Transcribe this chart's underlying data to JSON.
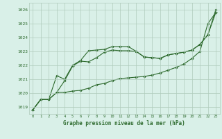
{
  "bg_color": "#d9f0e8",
  "grid_color": "#b0ccbc",
  "line_color": "#2d6a2d",
  "xlabel": "Graphe pression niveau de la mer (hPa)",
  "ylim": [
    1018.5,
    1026.5
  ],
  "xlim": [
    -0.5,
    23.5
  ],
  "yticks": [
    1019,
    1020,
    1021,
    1022,
    1023,
    1024,
    1025,
    1026
  ],
  "xticks": [
    0,
    1,
    2,
    3,
    4,
    5,
    6,
    7,
    8,
    9,
    10,
    11,
    12,
    13,
    14,
    15,
    16,
    17,
    18,
    19,
    20,
    21,
    22,
    23
  ],
  "series1": [
    1018.8,
    1019.55,
    1019.55,
    1020.05,
    1020.05,
    1020.15,
    1020.2,
    1020.35,
    1020.6,
    1020.7,
    1020.9,
    1021.05,
    1021.1,
    1021.15,
    1021.2,
    1021.3,
    1021.45,
    1021.65,
    1021.85,
    1022.1,
    1022.5,
    1023.0,
    1025.0,
    1025.8
  ],
  "series2": [
    1018.8,
    1019.55,
    1019.55,
    1020.05,
    1020.9,
    1021.95,
    1022.3,
    1022.25,
    1022.55,
    1022.95,
    1023.1,
    1023.05,
    1023.05,
    1023.0,
    1022.6,
    1022.55,
    1022.5,
    1022.75,
    1022.85,
    1022.95,
    1023.1,
    1023.5,
    1024.2,
    1025.8
  ],
  "series3": [
    1018.8,
    1019.55,
    1019.55,
    1021.25,
    1021.0,
    1022.0,
    1022.35,
    1023.05,
    1023.1,
    1023.15,
    1023.35,
    1023.35,
    1023.35,
    1023.0,
    1022.6,
    1022.55,
    1022.5,
    1022.75,
    1022.85,
    1022.95,
    1023.1,
    1023.5,
    1024.2,
    1026.0
  ]
}
